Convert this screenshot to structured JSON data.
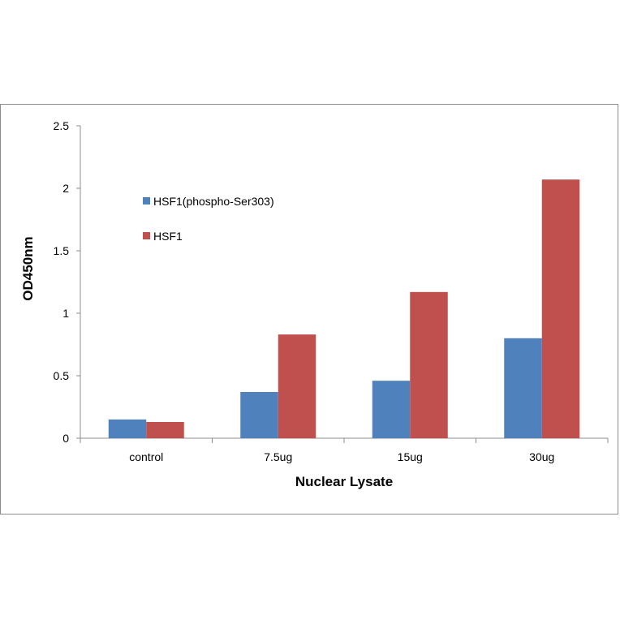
{
  "chart_data": {
    "type": "bar",
    "title": "",
    "xlabel": "Nuclear Lysate",
    "ylabel": "OD450nm",
    "categories": [
      "control",
      "7.5ug",
      "15ug",
      "30ug"
    ],
    "series": [
      {
        "name": "HSF1(phospho-Ser303)",
        "color": "#4f81bd",
        "values": [
          0.15,
          0.37,
          0.46,
          0.8
        ]
      },
      {
        "name": "HSF1",
        "color": "#c0504d",
        "values": [
          0.13,
          0.83,
          1.17,
          2.07
        ]
      }
    ],
    "ylim": [
      0,
      2.5
    ],
    "yticks": [
      "0",
      "0.5",
      "1",
      "1.5",
      "2",
      "2.5"
    ],
    "grid": false,
    "legend_position": "top-left"
  }
}
